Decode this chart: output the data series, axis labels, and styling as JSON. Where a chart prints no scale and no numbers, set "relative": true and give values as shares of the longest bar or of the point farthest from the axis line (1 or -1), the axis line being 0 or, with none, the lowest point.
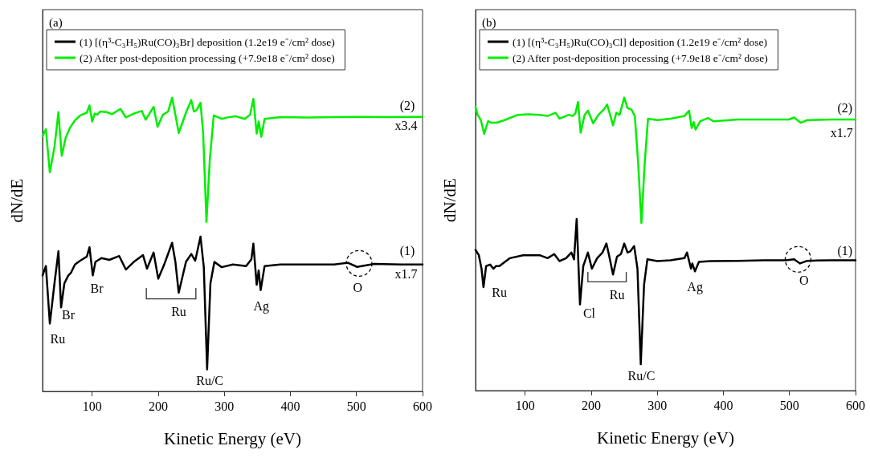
{
  "chart_data": [
    {
      "type": "line",
      "title": "(a)",
      "xlabel": "Kinetic Energy (eV)",
      "ylabel": "dN/dE",
      "relative": true,
      "xlim": [
        25,
        600
      ],
      "xticks": [
        100,
        200,
        300,
        400,
        500,
        600
      ],
      "grid": false,
      "marker": "none",
      "line_style": "solid",
      "legend": "top",
      "series": [
        {
          "name": "(1) [(η³-C₃H₅)Ru(CO)₃Br] deposition (1.2e19 e⁻/cm² dose)",
          "color": "#000000",
          "x": [
            25,
            30,
            36,
            43,
            49,
            53,
            58,
            64,
            68,
            74,
            82,
            92,
            96,
            101,
            105,
            114,
            126,
            141,
            151,
            163,
            177,
            183,
            193,
            200,
            209,
            221,
            226,
            231,
            242,
            250,
            256,
            264,
            269,
            274,
            279,
            285,
            296,
            313,
            333,
            341,
            344,
            349,
            352,
            355,
            361,
            385,
            426,
            466,
            487,
            501,
            527,
            568,
            600
          ],
          "values": [
            0.395,
            0.427,
            0.231,
            0.368,
            0.477,
            0.286,
            0.368,
            0.395,
            0.404,
            0.432,
            0.445,
            0.459,
            0.491,
            0.395,
            0.441,
            0.454,
            0.448,
            0.461,
            0.415,
            0.441,
            0.464,
            0.418,
            0.473,
            0.384,
            0.432,
            0.506,
            0.441,
            0.336,
            0.441,
            0.468,
            0.445,
            0.527,
            0.423,
            0.075,
            0.368,
            0.441,
            0.423,
            0.432,
            0.427,
            0.45,
            0.503,
            0.363,
            0.412,
            0.345,
            0.427,
            0.432,
            0.432,
            0.432,
            0.438,
            0.424,
            0.434,
            0.432,
            0.432
          ]
        },
        {
          "name": "(2) After post-deposition processing (+7.9e18 e⁻/cm² dose)",
          "color": "#00ee00",
          "x": [
            25,
            30,
            36,
            43,
            49,
            54,
            60,
            66,
            74,
            82,
            92,
            96,
            100,
            104,
            108,
            112,
            122,
            130,
            143,
            151,
            163,
            175,
            181,
            193,
            199,
            207,
            215,
            221,
            226,
            231,
            242,
            250,
            254,
            258,
            264,
            268,
            273,
            278,
            284,
            296,
            305,
            317,
            331,
            339,
            344,
            349,
            352,
            356,
            361,
            385,
            426,
            466,
            507,
            547,
            600
          ],
          "values": [
            0.869,
            0.893,
            0.746,
            0.832,
            0.951,
            0.802,
            0.864,
            0.896,
            0.923,
            0.94,
            0.949,
            0.974,
            0.919,
            0.946,
            0.942,
            0.953,
            0.951,
            0.944,
            0.962,
            0.933,
            0.946,
            0.955,
            0.925,
            0.969,
            0.901,
            0.942,
            0.953,
            1.0,
            0.942,
            0.88,
            0.949,
            0.992,
            0.953,
            0.958,
            0.983,
            0.878,
            0.577,
            0.787,
            0.94,
            0.928,
            0.933,
            0.937,
            0.928,
            0.942,
            0.996,
            0.878,
            0.919,
            0.867,
            0.928,
            0.934,
            0.933,
            0.934,
            0.935,
            0.934,
            0.935
          ]
        }
      ],
      "annotations": [
        "(2)",
        "x3.4",
        "(1)",
        "x1.7",
        "Ru",
        "Br",
        "Br",
        "Ru",
        "Ru/C",
        "Ag",
        "O"
      ]
    },
    {
      "type": "line",
      "title": "(b)",
      "xlabel": "Kinetic Energy (eV)",
      "ylabel": "dN/dE",
      "relative": true,
      "xlim": [
        25,
        600
      ],
      "xticks": [
        100,
        200,
        300,
        400,
        500,
        600
      ],
      "grid": false,
      "marker": "none",
      "line_style": "solid",
      "legend": "top",
      "series": [
        {
          "name": "(1) [(η³-C₃H₅)Ru(CO)₃Cl] deposition (1.2e19 e⁻/cm² dose)",
          "color": "#000000",
          "x": [
            25,
            30,
            34,
            37,
            41,
            47,
            52,
            56,
            61,
            77,
            97,
            122,
            134,
            144,
            152,
            162,
            170,
            174,
            178,
            183,
            188,
            195,
            201,
            209,
            217,
            223,
            227,
            233,
            239,
            245,
            250,
            255,
            259,
            265,
            270,
            275,
            280,
            285,
            300,
            320,
            341,
            345,
            351,
            353,
            357,
            363,
            381,
            422,
            462,
            495,
            507,
            516,
            527,
            564,
            600
          ],
          "values": [
            0.48,
            0.462,
            0.416,
            0.353,
            0.425,
            0.43,
            0.416,
            0.425,
            0.425,
            0.452,
            0.462,
            0.462,
            0.452,
            0.466,
            0.442,
            0.452,
            0.471,
            0.448,
            0.586,
            0.294,
            0.425,
            0.471,
            0.416,
            0.452,
            0.471,
            0.502,
            0.462,
            0.396,
            0.457,
            0.466,
            0.502,
            0.471,
            0.475,
            0.493,
            0.416,
            0.09,
            0.362,
            0.448,
            0.442,
            0.445,
            0.452,
            0.471,
            0.416,
            0.434,
            0.407,
            0.439,
            0.442,
            0.443,
            0.445,
            0.445,
            0.448,
            0.434,
            0.443,
            0.445,
            0.445
          ]
        },
        {
          "name": "(2) After post-deposition processing (+7.9e18 e⁻/cm² dose)",
          "color": "#00ee00",
          "x": [
            25,
            28,
            33,
            38,
            44,
            49,
            57,
            69,
            89,
            105,
            122,
            134,
            146,
            152,
            166,
            172,
            176,
            180,
            184,
            190,
            195,
            203,
            211,
            219,
            224,
            228,
            233,
            238,
            243,
            250,
            255,
            261,
            266,
            271,
            276,
            281,
            286,
            300,
            320,
            341,
            348,
            352,
            355,
            358,
            365,
            377,
            385,
            422,
            462,
            499,
            507,
            517,
            527,
            564,
            600
          ],
          "values": [
            0.968,
            0.941,
            0.923,
            0.876,
            0.919,
            0.914,
            0.914,
            0.923,
            0.941,
            0.943,
            0.941,
            0.937,
            0.948,
            0.928,
            0.941,
            0.937,
            0.946,
            0.985,
            0.88,
            0.941,
            0.955,
            0.912,
            0.941,
            0.959,
            0.976,
            0.946,
            0.905,
            0.948,
            0.941,
            1.0,
            0.964,
            0.959,
            0.937,
            0.778,
            0.572,
            0.778,
            0.928,
            0.923,
            0.928,
            0.937,
            0.955,
            0.896,
            0.916,
            0.891,
            0.919,
            0.93,
            0.919,
            0.925,
            0.925,
            0.925,
            0.932,
            0.914,
            0.923,
            0.925,
            0.925
          ]
        }
      ],
      "annotations": [
        "(2)",
        "x1.7",
        "(1)",
        "Ru",
        "Cl",
        "Ru",
        "Ru/C",
        "Ag",
        "O"
      ]
    }
  ]
}
